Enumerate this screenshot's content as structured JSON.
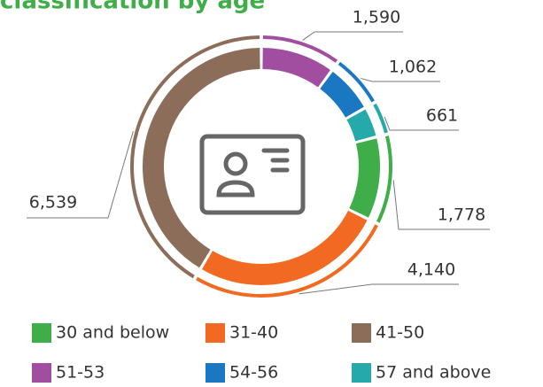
{
  "chart_data": {
    "type": "donut",
    "title": "classification by age",
    "categories": [
      "30 and below",
      "31-40",
      "41-50",
      "51-53",
      "54-56",
      "57 and above"
    ],
    "values": [
      1778,
      4140,
      6539,
      1590,
      1062,
      661
    ],
    "value_labels": [
      "1,778",
      "4,140",
      "6,539",
      "1,590",
      "1,062",
      "661"
    ],
    "colors": [
      "#3fae49",
      "#f26a22",
      "#8c6d5a",
      "#a24ea0",
      "#1a78c2",
      "#26a9a9"
    ],
    "start_category": 3
  }
}
